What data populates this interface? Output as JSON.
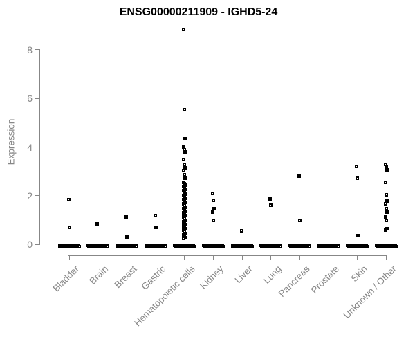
{
  "title": "ENSG00000211909 - IGHD5-24",
  "chart_data": {
    "type": "scatter",
    "title": "ENSG00000211909 - IGHD5-24",
    "xlabel": "",
    "ylabel": "Expression",
    "ylim": [
      0,
      9
    ],
    "yticks": [
      0,
      2,
      4,
      6,
      8
    ],
    "grid": false,
    "legend": false,
    "marker": "open-square",
    "colors": {
      "marker": "#000000",
      "axis": "#878787",
      "title": "#000000",
      "background": "#ffffff"
    },
    "categories": [
      "Bladder",
      "Brain",
      "Breast",
      "Gastric",
      "Hematopoietic cells",
      "Kidney",
      "Liver",
      "Lung",
      "Pancreas",
      "Prostate",
      "Skin",
      "Unknown / Other"
    ],
    "series": [
      {
        "name": "Bladder",
        "values": [
          1.85,
          0.71
        ],
        "zero_count": 30
      },
      {
        "name": "Brain",
        "values": [
          0.85
        ],
        "zero_count": 30
      },
      {
        "name": "Breast",
        "values": [
          1.14,
          0.3
        ],
        "zero_count": 30
      },
      {
        "name": "Gastric",
        "values": [
          1.18,
          0.71
        ],
        "zero_count": 30
      },
      {
        "name": "Hematopoietic cells",
        "values": [
          8.84,
          5.52,
          4.33,
          4.0,
          3.9,
          3.8,
          3.5,
          3.3,
          3.16,
          3.02,
          2.85,
          2.72,
          2.56,
          2.5,
          2.44,
          2.38,
          2.32,
          2.26,
          2.2,
          2.14,
          2.08,
          2.02,
          1.96,
          1.9,
          1.84,
          1.78,
          1.72,
          1.66,
          1.6,
          1.54,
          1.48,
          1.42,
          1.36,
          1.3,
          1.24,
          1.18,
          1.12,
          1.06,
          1.0,
          0.94,
          0.88,
          0.82,
          0.76,
          0.7,
          0.64,
          0.58,
          0.52,
          0.46,
          0.4,
          0.34,
          0.28,
          0.24
        ],
        "zero_count": 30
      },
      {
        "name": "Kidney",
        "values": [
          2.1,
          1.8,
          1.47,
          1.32,
          0.99
        ],
        "zero_count": 30
      },
      {
        "name": "Liver",
        "values": [
          0.57
        ],
        "zero_count": 30
      },
      {
        "name": "Lung",
        "values": [
          1.88,
          1.6
        ],
        "zero_count": 30
      },
      {
        "name": "Pancreas",
        "values": [
          2.82,
          1.0
        ],
        "zero_count": 30
      },
      {
        "name": "Prostate",
        "values": [],
        "zero_count": 30
      },
      {
        "name": "Skin",
        "values": [
          3.21,
          2.71,
          0.37
        ],
        "zero_count": 30
      },
      {
        "name": "Unknown / Other",
        "values": [
          3.28,
          3.18,
          3.05,
          2.55,
          2.03,
          1.78,
          1.68,
          1.46,
          1.32,
          1.14,
          1.0,
          0.66,
          0.6
        ],
        "zero_count": 30
      }
    ]
  }
}
